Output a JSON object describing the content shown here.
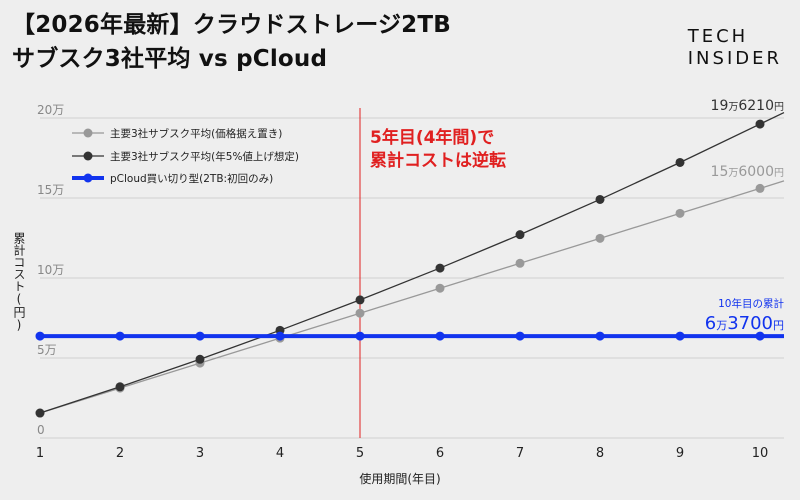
{
  "header": {
    "title_line1": "【2026年最新】クラウドストレージ2TB",
    "title_line2": "サブスク3社平均 vs pCloud",
    "logo_line1": "TECH",
    "logo_line2": "INSIDER"
  },
  "colors": {
    "background": "#eeeeee",
    "grid": "#d0d0d0",
    "subscription_flat": "#999999",
    "subscription_5pct": "#333333",
    "pcloud": "#1133ee",
    "annotation_red": "#e02020"
  },
  "annotation": {
    "line1": "5年目(4年間)で",
    "line2": "累計コストは逆転",
    "x": 5
  },
  "chart_data": {
    "type": "line",
    "x": [
      1,
      2,
      3,
      4,
      5,
      6,
      7,
      8,
      9,
      10
    ],
    "xlabel": "使用期間(年目)",
    "ylabel": "累計コスト(円)",
    "xlim": [
      1,
      10.3
    ],
    "ylim": [
      0,
      200000
    ],
    "x_ticks": [
      "1",
      "2",
      "3",
      "4",
      "5",
      "6",
      "7",
      "8",
      "9",
      "10"
    ],
    "y_ticks": [
      {
        "value": 0,
        "label": "0"
      },
      {
        "value": 50000,
        "label": "5万"
      },
      {
        "value": 100000,
        "label": "10万"
      },
      {
        "value": 150000,
        "label": "15万"
      },
      {
        "value": 200000,
        "label": "20万"
      }
    ],
    "grid": true,
    "legend_position": "top-left",
    "series": [
      {
        "name": "主要3社サブスク平均(価格据え置き)",
        "color": "#999999",
        "values": [
          15600,
          31200,
          46800,
          62400,
          78000,
          93600,
          109200,
          124800,
          140400,
          156000
        ],
        "end_label_main": "15",
        "end_label_unit": "万",
        "end_label_rest": "6000",
        "end_label_yen": "円"
      },
      {
        "name": "主要3社サブスク平均(年5%値上げ想定)",
        "color": "#333333",
        "values": [
          15600,
          32000,
          49200,
          67300,
          86300,
          106200,
          127100,
          149100,
          172200,
          196210
        ],
        "end_label_main": "19",
        "end_label_unit": "万",
        "end_label_rest": "6210",
        "end_label_yen": "円"
      },
      {
        "name": "pCloud買い切り型(2TB:初回のみ)",
        "color": "#1133ee",
        "values": [
          63700,
          63700,
          63700,
          63700,
          63700,
          63700,
          63700,
          63700,
          63700,
          63700
        ],
        "end_label_caption": "10年目の累計",
        "end_label_main": "6",
        "end_label_unit": "万",
        "end_label_rest": "3700",
        "end_label_yen": "円"
      }
    ]
  }
}
